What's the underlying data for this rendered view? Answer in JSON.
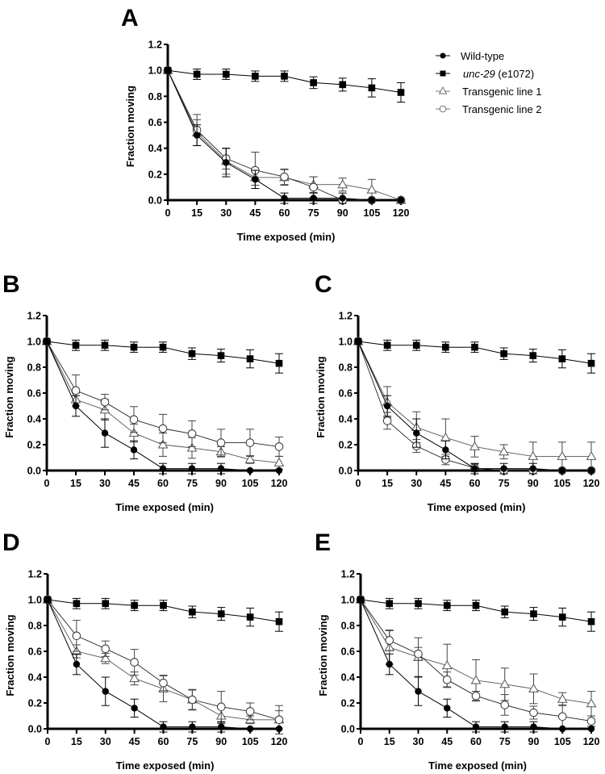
{
  "figure": {
    "legend": [
      {
        "key": "wt",
        "label_italic": "",
        "label": "Wild-type"
      },
      {
        "key": "unc",
        "label_italic": "unc-29",
        "label": " (e1072)"
      },
      {
        "key": "tg1",
        "label_italic": "",
        "label": "Transgenic line 1"
      },
      {
        "key": "tg2",
        "label_italic": "",
        "label": "Transgenic line 2"
      }
    ],
    "legend_placement": "right of panel A"
  },
  "chart_data": [
    {
      "panel": "A",
      "type": "line",
      "xlabel": "Time exposed (min)",
      "ylabel": "Fraction moving",
      "x": [
        0,
        15,
        30,
        45,
        60,
        75,
        90,
        105,
        120
      ],
      "xticks": [
        "0",
        "15",
        "30",
        "45",
        "60",
        "75",
        "90",
        "105",
        "120"
      ],
      "yticks": [
        "0.0",
        "0.2",
        "0.4",
        "0.6",
        "0.8",
        "1.0",
        "1.2"
      ],
      "ylim": [
        0,
        1.2
      ],
      "xlim": [
        0,
        120
      ],
      "series": [
        {
          "name": "Wild-type",
          "key": "wt",
          "marker": "filled-circle",
          "values": [
            1.0,
            0.5,
            0.29,
            0.16,
            0.015,
            0.015,
            0.015,
            0.0,
            0.0
          ],
          "err": [
            0,
            0.08,
            0.11,
            0.07,
            0.04,
            0.04,
            0.04,
            0,
            0
          ]
        },
        {
          "name": "unc-29 (e1072)",
          "key": "unc",
          "marker": "filled-square",
          "values": [
            1.0,
            0.97,
            0.97,
            0.955,
            0.955,
            0.905,
            0.89,
            0.865,
            0.83
          ],
          "err": [
            0,
            0.04,
            0.04,
            0.04,
            0.04,
            0.045,
            0.05,
            0.07,
            0.075
          ]
        },
        {
          "name": "Transgenic line 1",
          "key": "tg1",
          "marker": "open-triangle",
          "values": [
            1.0,
            0.52,
            0.3,
            0.175,
            0.175,
            0.12,
            0.12,
            0.08,
            0.0
          ],
          "err": [
            0,
            0.1,
            0.1,
            0.06,
            0.06,
            0.06,
            0.05,
            0.08,
            0
          ]
        },
        {
          "name": "Transgenic line 2",
          "key": "tg2",
          "marker": "open-circle",
          "values": [
            1.0,
            0.54,
            0.32,
            0.23,
            0.18,
            0.1,
            0.0,
            0.0,
            0.0
          ],
          "err": [
            0,
            0.12,
            0.08,
            0.14,
            0.06,
            0.08,
            0,
            0,
            0
          ]
        }
      ]
    },
    {
      "panel": "B",
      "type": "line",
      "xlabel": "Time exposed (min)",
      "ylabel": "Fraction moving",
      "x": [
        0,
        15,
        30,
        45,
        60,
        75,
        90,
        105,
        120
      ],
      "xticks": [
        "0",
        "15",
        "30",
        "45",
        "60",
        "75",
        "90",
        "105",
        "120"
      ],
      "yticks": [
        "0.0",
        "0.2",
        "0.4",
        "0.6",
        "0.8",
        "1.0",
        "1.2"
      ],
      "ylim": [
        0,
        1.2
      ],
      "xlim": [
        0,
        120
      ],
      "series": [
        {
          "name": "Wild-type",
          "key": "wt",
          "marker": "filled-circle",
          "values": [
            1.0,
            0.5,
            0.29,
            0.16,
            0.015,
            0.015,
            0.015,
            0.0,
            0.0
          ],
          "err": [
            0,
            0.08,
            0.11,
            0.07,
            0.04,
            0.04,
            0.04,
            0,
            0
          ]
        },
        {
          "name": "unc-29 (e1072)",
          "key": "unc",
          "marker": "filled-square",
          "values": [
            1.0,
            0.97,
            0.97,
            0.955,
            0.955,
            0.905,
            0.89,
            0.865,
            0.83
          ],
          "err": [
            0,
            0.04,
            0.04,
            0.04,
            0.04,
            0.045,
            0.05,
            0.07,
            0.075
          ]
        },
        {
          "name": "Transgenic line 1",
          "key": "tg1",
          "marker": "open-triangle",
          "values": [
            1.0,
            0.55,
            0.47,
            0.29,
            0.2,
            0.175,
            0.145,
            0.085,
            0.06
          ],
          "err": [
            0,
            0.05,
            0.08,
            0.07,
            0.09,
            0.08,
            0.04,
            0.03,
            0.05
          ]
        },
        {
          "name": "Transgenic line 2",
          "key": "tg2",
          "marker": "open-circle",
          "values": [
            1.0,
            0.62,
            0.53,
            0.395,
            0.325,
            0.285,
            0.215,
            0.215,
            0.185
          ],
          "err": [
            0,
            0.12,
            0.06,
            0.1,
            0.11,
            0.1,
            0.105,
            0.105,
            0.075
          ]
        }
      ]
    },
    {
      "panel": "C",
      "type": "line",
      "xlabel": "Time exposed (min)",
      "ylabel": "Fraction moving",
      "x": [
        0,
        15,
        30,
        45,
        60,
        75,
        90,
        105,
        120
      ],
      "xticks": [
        "0",
        "15",
        "30",
        "45",
        "60",
        "75",
        "90",
        "105",
        "120"
      ],
      "yticks": [
        "0.0",
        "0.2",
        "0.4",
        "0.6",
        "0.8",
        "1.0",
        "1.2"
      ],
      "ylim": [
        0,
        1.2
      ],
      "xlim": [
        0,
        120
      ],
      "series": [
        {
          "name": "Wild-type",
          "key": "wt",
          "marker": "filled-circle",
          "values": [
            1.0,
            0.5,
            0.29,
            0.16,
            0.015,
            0.015,
            0.015,
            0.0,
            0.0
          ],
          "err": [
            0,
            0.08,
            0.11,
            0.07,
            0.04,
            0.04,
            0.04,
            0,
            0
          ]
        },
        {
          "name": "unc-29 (e1072)",
          "key": "unc",
          "marker": "filled-square",
          "values": [
            1.0,
            0.97,
            0.97,
            0.955,
            0.955,
            0.905,
            0.89,
            0.865,
            0.83
          ],
          "err": [
            0,
            0.04,
            0.04,
            0.04,
            0.04,
            0.045,
            0.05,
            0.07,
            0.075
          ]
        },
        {
          "name": "Transgenic line 1",
          "key": "tg1",
          "marker": "open-triangle",
          "values": [
            1.0,
            0.53,
            0.335,
            0.255,
            0.185,
            0.145,
            0.11,
            0.11,
            0.11
          ],
          "err": [
            0,
            0.12,
            0.12,
            0.145,
            0.08,
            0.055,
            0.11,
            0.11,
            0.11
          ]
        },
        {
          "name": "Transgenic line 2",
          "key": "tg2",
          "marker": "open-circle",
          "values": [
            1.0,
            0.385,
            0.19,
            0.085,
            0.02,
            0.0,
            0.0,
            0.0,
            0.0
          ],
          "err": [
            0,
            0.065,
            0.05,
            0.04,
            0.03,
            0,
            0,
            0,
            0
          ]
        }
      ]
    },
    {
      "panel": "D",
      "type": "line",
      "xlabel": "Time exposed (min)",
      "ylabel": "Fraction moving",
      "x": [
        0,
        15,
        30,
        45,
        60,
        75,
        90,
        105,
        120
      ],
      "xticks": [
        "0",
        "15",
        "30",
        "45",
        "60",
        "75",
        "90",
        "105",
        "120"
      ],
      "yticks": [
        "0.0",
        "0.2",
        "0.4",
        "0.6",
        "0.8",
        "1.0",
        "1.2"
      ],
      "ylim": [
        0,
        1.2
      ],
      "xlim": [
        0,
        120
      ],
      "series": [
        {
          "name": "Wild-type",
          "key": "wt",
          "marker": "filled-circle",
          "values": [
            1.0,
            0.5,
            0.29,
            0.16,
            0.015,
            0.015,
            0.015,
            0.0,
            0.0
          ],
          "err": [
            0,
            0.08,
            0.11,
            0.07,
            0.04,
            0.04,
            0.04,
            0,
            0
          ]
        },
        {
          "name": "unc-29 (e1072)",
          "key": "unc",
          "marker": "filled-square",
          "values": [
            1.0,
            0.97,
            0.97,
            0.955,
            0.955,
            0.905,
            0.89,
            0.865,
            0.83
          ],
          "err": [
            0,
            0.04,
            0.04,
            0.04,
            0.04,
            0.045,
            0.05,
            0.07,
            0.075
          ]
        },
        {
          "name": "Transgenic line 1",
          "key": "tg1",
          "marker": "open-triangle",
          "values": [
            1.0,
            0.6,
            0.545,
            0.39,
            0.31,
            0.225,
            0.1,
            0.07,
            0.07
          ],
          "err": [
            0,
            0.05,
            0.04,
            0.05,
            0.1,
            0.08,
            0.06,
            0.03,
            0.07
          ]
        },
        {
          "name": "Transgenic line 2",
          "key": "tg2",
          "marker": "open-circle",
          "values": [
            1.0,
            0.72,
            0.62,
            0.515,
            0.355,
            0.225,
            0.17,
            0.135,
            0.07
          ],
          "err": [
            0,
            0.12,
            0.06,
            0.1,
            0.06,
            0.075,
            0.12,
            0.065,
            0.11
          ]
        }
      ]
    },
    {
      "panel": "E",
      "type": "line",
      "xlabel": "Time exposed (min)",
      "ylabel": "Fraction moving",
      "x": [
        0,
        15,
        30,
        45,
        60,
        75,
        90,
        105,
        120
      ],
      "xticks": [
        "0",
        "15",
        "30",
        "45",
        "60",
        "75",
        "90",
        "105",
        "120"
      ],
      "yticks": [
        "0.0",
        "0.2",
        "0.4",
        "0.6",
        "0.8",
        "1.0",
        "1.2"
      ],
      "ylim": [
        0,
        1.2
      ],
      "xlim": [
        0,
        120
      ],
      "series": [
        {
          "name": "Wild-type",
          "key": "wt",
          "marker": "filled-circle",
          "values": [
            1.0,
            0.5,
            0.29,
            0.16,
            0.015,
            0.015,
            0.015,
            0.0,
            0.0
          ],
          "err": [
            0,
            0.08,
            0.11,
            0.07,
            0.04,
            0.04,
            0.04,
            0,
            0
          ]
        },
        {
          "name": "unc-29 (e1072)",
          "key": "unc",
          "marker": "filled-square",
          "values": [
            1.0,
            0.97,
            0.97,
            0.955,
            0.955,
            0.905,
            0.89,
            0.865,
            0.83
          ],
          "err": [
            0,
            0.04,
            0.04,
            0.04,
            0.04,
            0.045,
            0.05,
            0.07,
            0.075
          ]
        },
        {
          "name": "Transgenic line 1",
          "key": "tg1",
          "marker": "open-triangle",
          "values": [
            1.0,
            0.63,
            0.555,
            0.49,
            0.375,
            0.345,
            0.31,
            0.23,
            0.195
          ],
          "err": [
            0,
            0.13,
            0.15,
            0.165,
            0.16,
            0.125,
            0.115,
            0.05,
            0.095
          ]
        },
        {
          "name": "Transgenic line 2",
          "key": "tg2",
          "marker": "open-circle",
          "values": [
            1.0,
            0.685,
            0.58,
            0.38,
            0.255,
            0.185,
            0.125,
            0.095,
            0.06
          ],
          "err": [
            0,
            0.08,
            0.05,
            0.06,
            0.035,
            0.08,
            0.05,
            0.09,
            0.04
          ]
        }
      ]
    }
  ]
}
